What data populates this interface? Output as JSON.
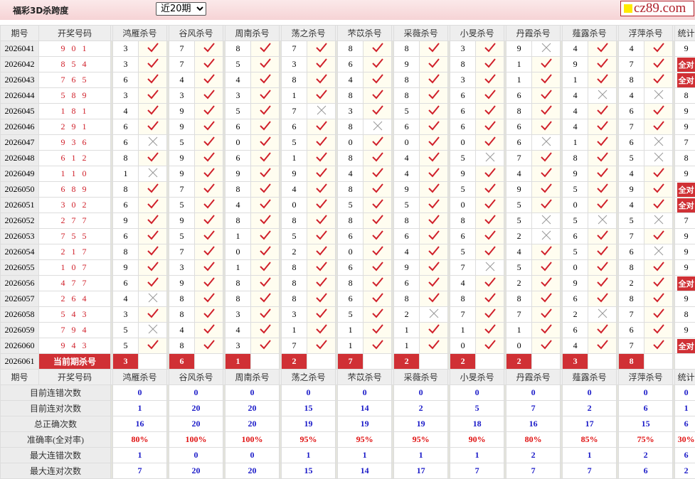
{
  "header": {
    "title": "福彩3D杀跨度",
    "period_select": "近20期",
    "logo_text": "cz89.com"
  },
  "columns": {
    "period": "期号",
    "code": "开奖号码",
    "predictors": [
      "鸿雁杀号",
      "谷风杀号",
      "周南杀号",
      "荡之杀号",
      "芣苡杀号",
      "采薇杀号",
      "小旻杀号",
      "丹霞杀号",
      "薤露杀号",
      "浮萍杀号"
    ],
    "stat": "统计"
  },
  "colors": {
    "accent_red": "#d03035",
    "check": "#d0202a",
    "cross": "#999999",
    "stat_blue": "#1a1ac8"
  },
  "rows": [
    {
      "period": "2026041",
      "code": "9 0 1",
      "kills": [
        [
          "3",
          "v"
        ],
        [
          "7",
          "v"
        ],
        [
          "8",
          "v"
        ],
        [
          "7",
          "v"
        ],
        [
          "8",
          "v"
        ],
        [
          "8",
          "v"
        ],
        [
          "3",
          "v"
        ],
        [
          "9",
          "x"
        ],
        [
          "4",
          "v"
        ],
        [
          "4",
          "v"
        ]
      ],
      "stat": "9"
    },
    {
      "period": "2026042",
      "code": "8 5 4",
      "kills": [
        [
          "3",
          "v"
        ],
        [
          "7",
          "v"
        ],
        [
          "5",
          "v"
        ],
        [
          "3",
          "v"
        ],
        [
          "6",
          "v"
        ],
        [
          "9",
          "v"
        ],
        [
          "8",
          "v"
        ],
        [
          "1",
          "v"
        ],
        [
          "9",
          "v"
        ],
        [
          "7",
          "v"
        ]
      ],
      "stat": "全对"
    },
    {
      "period": "2026043",
      "code": "7 6 5",
      "kills": [
        [
          "6",
          "v"
        ],
        [
          "4",
          "v"
        ],
        [
          "4",
          "v"
        ],
        [
          "8",
          "v"
        ],
        [
          "4",
          "v"
        ],
        [
          "8",
          "v"
        ],
        [
          "3",
          "v"
        ],
        [
          "1",
          "v"
        ],
        [
          "1",
          "v"
        ],
        [
          "8",
          "v"
        ]
      ],
      "stat": "全对"
    },
    {
      "period": "2026044",
      "code": "5 8 9",
      "kills": [
        [
          "3",
          "v"
        ],
        [
          "3",
          "v"
        ],
        [
          "3",
          "v"
        ],
        [
          "1",
          "v"
        ],
        [
          "8",
          "v"
        ],
        [
          "8",
          "v"
        ],
        [
          "6",
          "v"
        ],
        [
          "6",
          "v"
        ],
        [
          "4",
          "x"
        ],
        [
          "4",
          "x"
        ]
      ],
      "stat": "8"
    },
    {
      "period": "2026045",
      "code": "1 8 1",
      "kills": [
        [
          "4",
          "v"
        ],
        [
          "9",
          "v"
        ],
        [
          "5",
          "v"
        ],
        [
          "7",
          "x"
        ],
        [
          "3",
          "v"
        ],
        [
          "5",
          "v"
        ],
        [
          "6",
          "v"
        ],
        [
          "8",
          "v"
        ],
        [
          "4",
          "v"
        ],
        [
          "6",
          "v"
        ]
      ],
      "stat": "9"
    },
    {
      "period": "2026046",
      "code": "2 9 1",
      "kills": [
        [
          "6",
          "v"
        ],
        [
          "9",
          "v"
        ],
        [
          "6",
          "v"
        ],
        [
          "6",
          "v"
        ],
        [
          "8",
          "x"
        ],
        [
          "6",
          "v"
        ],
        [
          "6",
          "v"
        ],
        [
          "6",
          "v"
        ],
        [
          "4",
          "v"
        ],
        [
          "7",
          "v"
        ]
      ],
      "stat": "9"
    },
    {
      "period": "2026047",
      "code": "9 3 6",
      "kills": [
        [
          "6",
          "x"
        ],
        [
          "5",
          "v"
        ],
        [
          "0",
          "v"
        ],
        [
          "5",
          "v"
        ],
        [
          "0",
          "v"
        ],
        [
          "0",
          "v"
        ],
        [
          "0",
          "v"
        ],
        [
          "6",
          "x"
        ],
        [
          "1",
          "v"
        ],
        [
          "6",
          "x"
        ]
      ],
      "stat": "7"
    },
    {
      "period": "2026048",
      "code": "6 1 2",
      "kills": [
        [
          "8",
          "v"
        ],
        [
          "9",
          "v"
        ],
        [
          "6",
          "v"
        ],
        [
          "1",
          "v"
        ],
        [
          "8",
          "v"
        ],
        [
          "4",
          "v"
        ],
        [
          "5",
          "x"
        ],
        [
          "7",
          "v"
        ],
        [
          "8",
          "v"
        ],
        [
          "5",
          "x"
        ]
      ],
      "stat": "8"
    },
    {
      "period": "2026049",
      "code": "1 1 0",
      "kills": [
        [
          "1",
          "x"
        ],
        [
          "9",
          "v"
        ],
        [
          "9",
          "v"
        ],
        [
          "9",
          "v"
        ],
        [
          "4",
          "v"
        ],
        [
          "4",
          "v"
        ],
        [
          "9",
          "v"
        ],
        [
          "4",
          "v"
        ],
        [
          "9",
          "v"
        ],
        [
          "4",
          "v"
        ]
      ],
      "stat": "9"
    },
    {
      "period": "2026050",
      "code": "6 8 9",
      "kills": [
        [
          "8",
          "v"
        ],
        [
          "7",
          "v"
        ],
        [
          "8",
          "v"
        ],
        [
          "4",
          "v"
        ],
        [
          "8",
          "v"
        ],
        [
          "9",
          "v"
        ],
        [
          "5",
          "v"
        ],
        [
          "9",
          "v"
        ],
        [
          "5",
          "v"
        ],
        [
          "9",
          "v"
        ]
      ],
      "stat": "全对"
    },
    {
      "period": "2026051",
      "code": "3 0 2",
      "kills": [
        [
          "6",
          "v"
        ],
        [
          "5",
          "v"
        ],
        [
          "4",
          "v"
        ],
        [
          "0",
          "v"
        ],
        [
          "5",
          "v"
        ],
        [
          "5",
          "v"
        ],
        [
          "0",
          "v"
        ],
        [
          "5",
          "v"
        ],
        [
          "0",
          "v"
        ],
        [
          "4",
          "v"
        ]
      ],
      "stat": "全对"
    },
    {
      "period": "2026052",
      "code": "2 7 7",
      "kills": [
        [
          "9",
          "v"
        ],
        [
          "9",
          "v"
        ],
        [
          "8",
          "v"
        ],
        [
          "8",
          "v"
        ],
        [
          "8",
          "v"
        ],
        [
          "8",
          "v"
        ],
        [
          "8",
          "v"
        ],
        [
          "5",
          "x"
        ],
        [
          "5",
          "x"
        ],
        [
          "5",
          "x"
        ]
      ],
      "stat": "7"
    },
    {
      "period": "2026053",
      "code": "7 5 5",
      "kills": [
        [
          "6",
          "v"
        ],
        [
          "5",
          "v"
        ],
        [
          "1",
          "v"
        ],
        [
          "5",
          "v"
        ],
        [
          "6",
          "v"
        ],
        [
          "6",
          "v"
        ],
        [
          "6",
          "v"
        ],
        [
          "2",
          "x"
        ],
        [
          "6",
          "v"
        ],
        [
          "7",
          "v"
        ]
      ],
      "stat": "9"
    },
    {
      "period": "2026054",
      "code": "2 1 7",
      "kills": [
        [
          "8",
          "v"
        ],
        [
          "7",
          "v"
        ],
        [
          "0",
          "v"
        ],
        [
          "2",
          "v"
        ],
        [
          "0",
          "v"
        ],
        [
          "4",
          "v"
        ],
        [
          "5",
          "v"
        ],
        [
          "4",
          "v"
        ],
        [
          "5",
          "v"
        ],
        [
          "6",
          "x"
        ]
      ],
      "stat": "9"
    },
    {
      "period": "2026055",
      "code": "1 0 7",
      "kills": [
        [
          "9",
          "v"
        ],
        [
          "3",
          "v"
        ],
        [
          "1",
          "v"
        ],
        [
          "8",
          "v"
        ],
        [
          "6",
          "v"
        ],
        [
          "9",
          "v"
        ],
        [
          "7",
          "x"
        ],
        [
          "5",
          "v"
        ],
        [
          "0",
          "v"
        ],
        [
          "8",
          "v"
        ]
      ],
      "stat": "9"
    },
    {
      "period": "2026056",
      "code": "4 7 7",
      "kills": [
        [
          "6",
          "v"
        ],
        [
          "9",
          "v"
        ],
        [
          "8",
          "v"
        ],
        [
          "8",
          "v"
        ],
        [
          "8",
          "v"
        ],
        [
          "6",
          "v"
        ],
        [
          "4",
          "v"
        ],
        [
          "2",
          "v"
        ],
        [
          "9",
          "v"
        ],
        [
          "2",
          "v"
        ]
      ],
      "stat": "全对"
    },
    {
      "period": "2026057",
      "code": "2 6 4",
      "kills": [
        [
          "4",
          "x"
        ],
        [
          "8",
          "v"
        ],
        [
          "8",
          "v"
        ],
        [
          "8",
          "v"
        ],
        [
          "6",
          "v"
        ],
        [
          "8",
          "v"
        ],
        [
          "8",
          "v"
        ],
        [
          "8",
          "v"
        ],
        [
          "6",
          "v"
        ],
        [
          "8",
          "v"
        ]
      ],
      "stat": "9"
    },
    {
      "period": "2026058",
      "code": "5 4 3",
      "kills": [
        [
          "3",
          "v"
        ],
        [
          "8",
          "v"
        ],
        [
          "3",
          "v"
        ],
        [
          "3",
          "v"
        ],
        [
          "5",
          "v"
        ],
        [
          "2",
          "x"
        ],
        [
          "7",
          "v"
        ],
        [
          "7",
          "v"
        ],
        [
          "2",
          "x"
        ],
        [
          "7",
          "v"
        ]
      ],
      "stat": "8"
    },
    {
      "period": "2026059",
      "code": "7 9 4",
      "kills": [
        [
          "5",
          "x"
        ],
        [
          "4",
          "v"
        ],
        [
          "4",
          "v"
        ],
        [
          "1",
          "v"
        ],
        [
          "1",
          "v"
        ],
        [
          "1",
          "v"
        ],
        [
          "1",
          "v"
        ],
        [
          "1",
          "v"
        ],
        [
          "6",
          "v"
        ],
        [
          "6",
          "v"
        ]
      ],
      "stat": "9"
    },
    {
      "period": "2026060",
      "code": "9 4 3",
      "kills": [
        [
          "5",
          "v"
        ],
        [
          "8",
          "v"
        ],
        [
          "3",
          "v"
        ],
        [
          "7",
          "v"
        ],
        [
          "1",
          "v"
        ],
        [
          "1",
          "v"
        ],
        [
          "0",
          "v"
        ],
        [
          "0",
          "v"
        ],
        [
          "4",
          "v"
        ],
        [
          "7",
          "v"
        ]
      ],
      "stat": "全对"
    }
  ],
  "current": {
    "period": "2026061",
    "label": "当前期杀号",
    "kills": [
      "3",
      "6",
      "1",
      "2",
      "7",
      "2",
      "2",
      "2",
      "3",
      "8"
    ]
  },
  "stats": [
    {
      "label": "目前连错次数",
      "values": [
        "0",
        "0",
        "0",
        "0",
        "0",
        "0",
        "0",
        "0",
        "0",
        "0"
      ],
      "stat": "0"
    },
    {
      "label": "目前连对次数",
      "values": [
        "1",
        "20",
        "20",
        "15",
        "14",
        "2",
        "5",
        "7",
        "2",
        "6"
      ],
      "stat": "1"
    },
    {
      "label": "总正确次数",
      "values": [
        "16",
        "20",
        "20",
        "19",
        "19",
        "19",
        "18",
        "16",
        "17",
        "15"
      ],
      "stat": "6"
    },
    {
      "label": "准确率(全对率)",
      "values": [
        "80%",
        "100%",
        "100%",
        "95%",
        "95%",
        "95%",
        "90%",
        "80%",
        "85%",
        "75%"
      ],
      "stat": "30%",
      "rate": true
    },
    {
      "label": "最大连错次数",
      "values": [
        "1",
        "0",
        "0",
        "1",
        "1",
        "1",
        "1",
        "2",
        "1",
        "2"
      ],
      "stat": "6"
    },
    {
      "label": "最大连对次数",
      "values": [
        "7",
        "20",
        "20",
        "15",
        "14",
        "17",
        "7",
        "7",
        "7",
        "6"
      ],
      "stat": "2"
    }
  ]
}
